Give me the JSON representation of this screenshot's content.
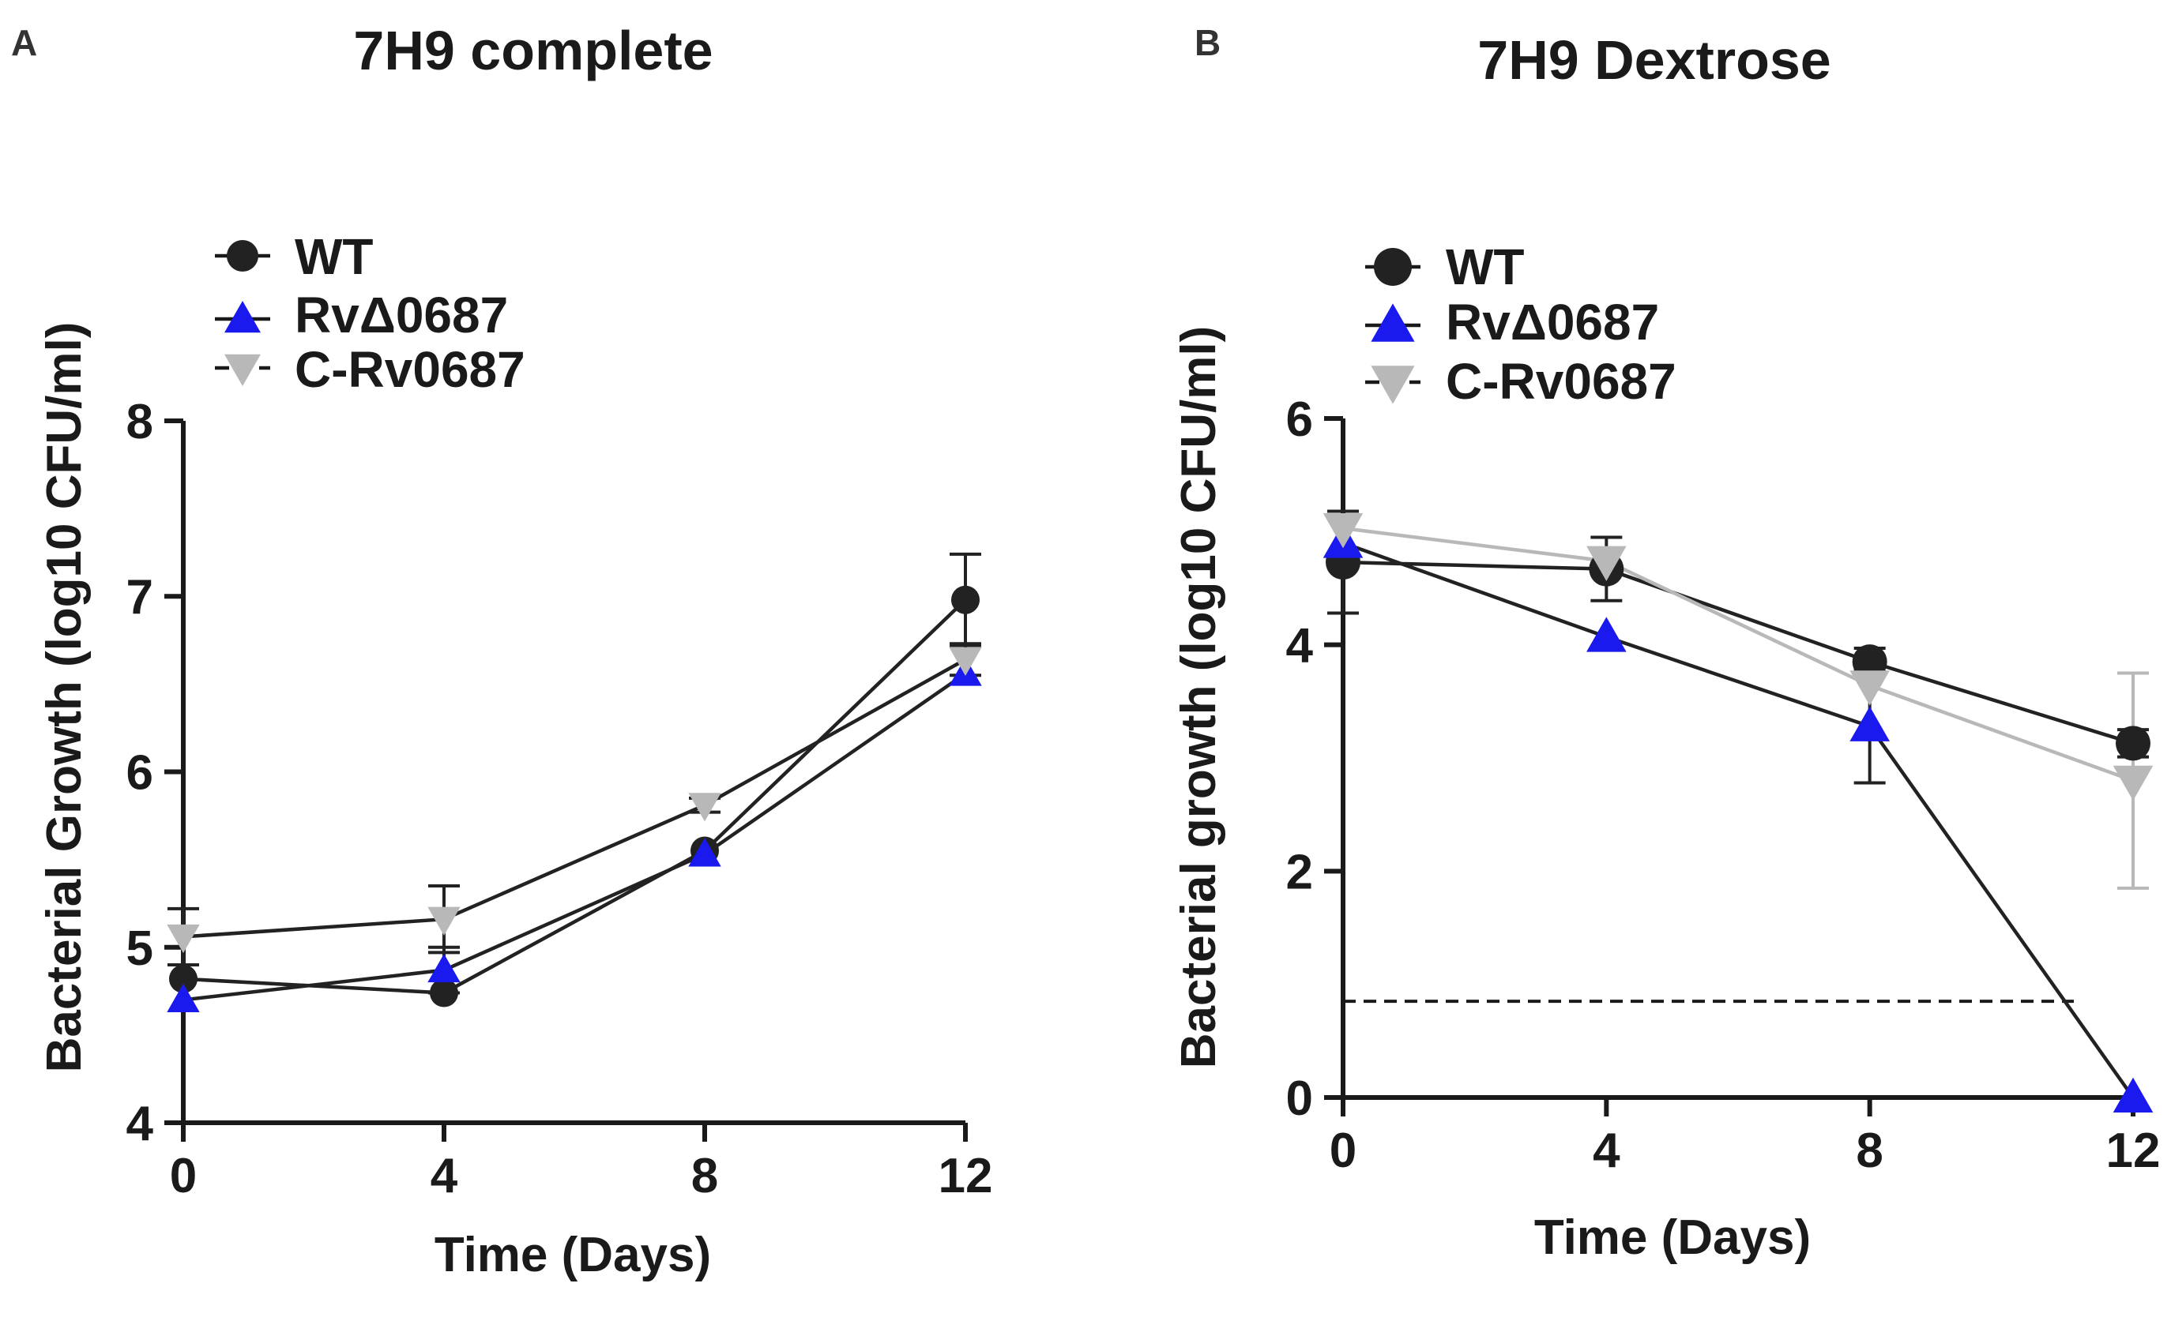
{
  "colors": {
    "wt": "#222222",
    "mutant": "#1a1aee",
    "complement": "#b8b8b8",
    "axis": "#1a1a1a",
    "dashed": "#1a1a1a"
  },
  "chart_data": [
    {
      "panel_letter": "A",
      "type": "line",
      "title": "7H9 complete",
      "xlabel": "Time (Days)",
      "ylabel": "Bacterial Growth (log10 CFU/ml)",
      "xlim": [
        0,
        12
      ],
      "ylim": [
        4,
        8
      ],
      "x_ticks": [
        0,
        4,
        8,
        12
      ],
      "y_ticks": [
        4,
        5,
        6,
        7,
        8
      ],
      "x_tick_labels": [
        "0",
        "4",
        "8",
        "12"
      ],
      "y_tick_labels": [
        "4",
        "5",
        "6",
        "7",
        "8"
      ],
      "legend_position": "top-left",
      "series": [
        {
          "name": "WT",
          "marker": "circle",
          "color_key": "wt",
          "line_color_key": "wt",
          "x": [
            0,
            4,
            8,
            12
          ],
          "y": [
            4.82,
            4.74,
            5.55,
            6.98
          ],
          "err": [
            0.0,
            0.0,
            0.0,
            0.26
          ]
        },
        {
          "name": "RvΔ0687",
          "marker": "triangle-up",
          "color_key": "mutant",
          "line_color_key": "wt",
          "x": [
            0,
            4,
            8,
            12
          ],
          "y": [
            4.7,
            4.87,
            5.53,
            6.56
          ],
          "err": [
            0.0,
            0.13,
            0.0,
            0.0
          ]
        },
        {
          "name": "C-Rv0687",
          "marker": "triangle-down",
          "color_key": "complement",
          "line_color_key": "wt",
          "x": [
            0,
            4,
            8,
            12
          ],
          "y": [
            5.06,
            5.16,
            5.81,
            6.64
          ],
          "err": [
            0.16,
            0.19,
            0.04,
            0.09
          ]
        }
      ],
      "reference_line": null
    },
    {
      "panel_letter": "B",
      "type": "line",
      "title": "7H9 Dextrose",
      "xlabel": "Time (Days)",
      "ylabel": "Bacterial growth (log10 CFU/ml)",
      "xlim": [
        0,
        12
      ],
      "ylim": [
        0,
        6
      ],
      "x_ticks": [
        0,
        4,
        8,
        12
      ],
      "y_ticks": [
        0,
        2,
        4,
        6
      ],
      "x_tick_labels": [
        "0",
        "4",
        "8",
        "12"
      ],
      "y_tick_labels": [
        "0",
        "2",
        "4",
        "6"
      ],
      "legend_position": "top-left",
      "series": [
        {
          "name": "WT",
          "marker": "circle",
          "color_key": "wt",
          "line_color_key": "wt",
          "x": [
            0,
            4,
            8,
            12
          ],
          "y": [
            4.73,
            4.67,
            3.85,
            3.13
          ],
          "err": [
            0.45,
            0.28,
            0.12,
            0.12
          ]
        },
        {
          "name": "RvΔ0687",
          "marker": "triangle-up",
          "color_key": "mutant",
          "line_color_key": "wt",
          "x": [
            0,
            4,
            8,
            12
          ],
          "y": [
            4.9,
            4.07,
            3.28,
            0.0
          ],
          "err": [
            0.0,
            0.0,
            0.5,
            0.0
          ]
        },
        {
          "name": "C-Rv0687",
          "marker": "triangle-down",
          "color_key": "complement",
          "line_color_key": "complement",
          "x": [
            0,
            4,
            8,
            12
          ],
          "y": [
            5.03,
            4.74,
            3.64,
            2.8
          ],
          "err": [
            0.0,
            0.0,
            0.0,
            0.95
          ]
        }
      ],
      "reference_line": {
        "y": 0.85,
        "x_start": 0,
        "x_end": 11.1,
        "style": "dashed"
      }
    }
  ]
}
